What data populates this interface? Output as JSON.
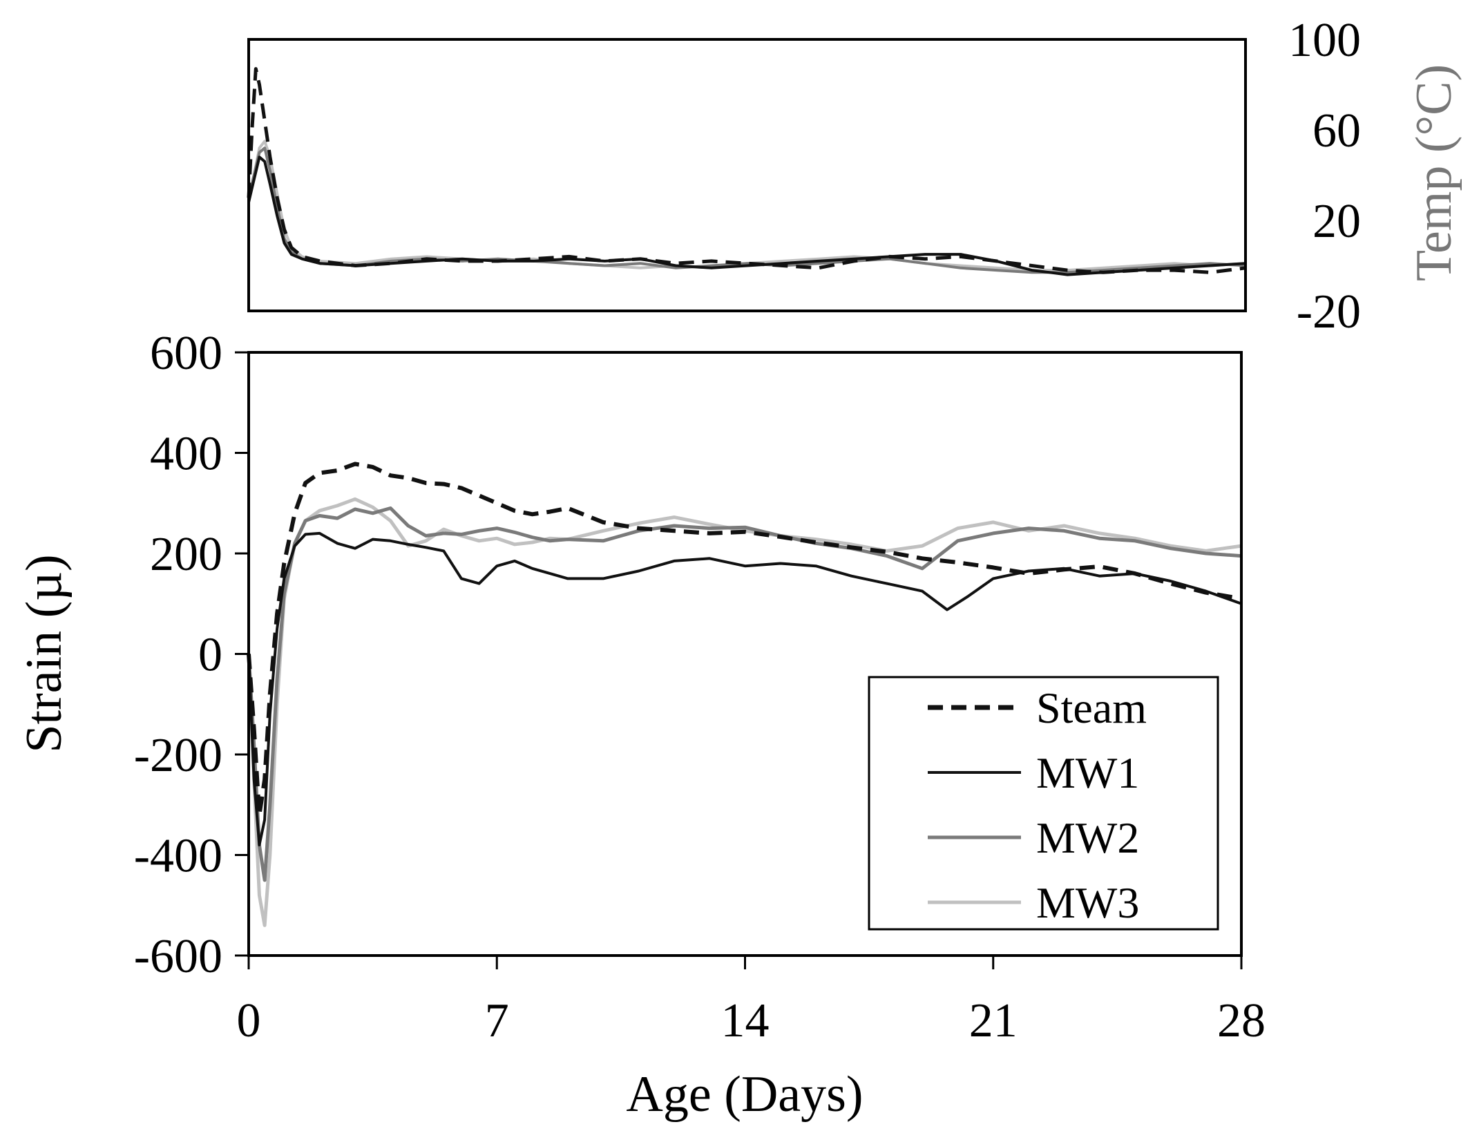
{
  "chart_data": [
    {
      "id": "temp",
      "type": "line",
      "title": "",
      "xlabel": "",
      "ylabel": "Temp (°C)",
      "ylabel_side": "right",
      "xlim": [
        0,
        28
      ],
      "ylim": [
        -20,
        100
      ],
      "yticks": [
        -20,
        20,
        60,
        100
      ],
      "ytick_labels": [
        "-20",
        "20",
        "60",
        "100"
      ],
      "grid": false,
      "series": [
        {
          "name": "Steam",
          "style": "dashed",
          "color": "#111111",
          "x": [
            0,
            0.1,
            0.2,
            0.3,
            0.45,
            0.6,
            0.8,
            1.0,
            1.2,
            1.5,
            2,
            3,
            4,
            5,
            6,
            7,
            8,
            9,
            10,
            11,
            12,
            13,
            14,
            15,
            16,
            17,
            18,
            19,
            20,
            21,
            22,
            23,
            24,
            25,
            26,
            27,
            28
          ],
          "y": [
            30,
            62,
            87,
            80,
            64,
            48,
            30,
            16,
            8,
            4,
            2,
            0,
            1,
            3,
            2,
            2,
            3,
            4,
            2,
            3,
            1,
            2,
            1,
            0,
            -1,
            2,
            4,
            3,
            4,
            2,
            0,
            -2,
            -3,
            -2,
            -2,
            -3,
            -1
          ]
        },
        {
          "name": "MW1",
          "style": "solid",
          "color": "#111111",
          "x": [
            0,
            0.15,
            0.3,
            0.45,
            0.6,
            0.8,
            1.0,
            1.2,
            1.5,
            2,
            3,
            4,
            5,
            6,
            7,
            8,
            9,
            10,
            11,
            12,
            13,
            14,
            15,
            16,
            17,
            18,
            19,
            20,
            21,
            22,
            23,
            24,
            25,
            26,
            27,
            28
          ],
          "y": [
            28,
            38,
            48,
            46,
            36,
            22,
            10,
            5,
            3,
            1,
            0,
            1,
            2,
            3,
            2,
            2,
            3,
            2,
            3,
            0,
            -1,
            0,
            1,
            2,
            3,
            4,
            5,
            5,
            2,
            -2,
            -4,
            -3,
            -2,
            -1,
            0,
            1
          ]
        },
        {
          "name": "MW2",
          "style": "solid",
          "color": "#7a7a7a",
          "x": [
            0,
            0.15,
            0.3,
            0.45,
            0.6,
            0.8,
            1.0,
            1.2,
            1.5,
            2,
            3,
            4,
            5,
            6,
            7,
            8,
            9,
            10,
            11,
            12,
            13,
            14,
            15,
            16,
            17,
            18,
            19,
            20,
            21,
            22,
            23,
            24,
            25,
            26,
            27,
            28
          ],
          "y": [
            30,
            40,
            50,
            52,
            42,
            26,
            12,
            6,
            3,
            1,
            0,
            2,
            3,
            2,
            3,
            2,
            1,
            0,
            1,
            -1,
            0,
            1,
            0,
            1,
            2,
            3,
            1,
            -1,
            -2,
            -3,
            -3,
            -2,
            -1,
            0,
            1,
            0
          ]
        },
        {
          "name": "MW3",
          "style": "solid",
          "color": "#c0c0c0",
          "x": [
            0,
            0.15,
            0.3,
            0.45,
            0.6,
            0.8,
            1.0,
            1.2,
            1.5,
            2,
            3,
            4,
            5,
            6,
            7,
            8,
            9,
            10,
            11,
            12,
            13,
            14,
            15,
            16,
            17,
            18,
            19,
            20,
            21,
            22,
            23,
            24,
            25,
            26,
            27,
            28
          ],
          "y": [
            30,
            40,
            52,
            55,
            48,
            32,
            16,
            8,
            4,
            2,
            1,
            3,
            4,
            3,
            2,
            3,
            1,
            0,
            -1,
            0,
            -1,
            1,
            2,
            3,
            4,
            3,
            1,
            0,
            -1,
            -2,
            -2,
            -1,
            0,
            1,
            0,
            1
          ]
        }
      ]
    },
    {
      "id": "strain",
      "type": "line",
      "title": "",
      "xlabel": "Age (Days)",
      "ylabel": "Strain (µ)",
      "xlim": [
        0,
        28
      ],
      "ylim": [
        -600,
        600
      ],
      "xticks": [
        0,
        7,
        14,
        21,
        28
      ],
      "xtick_labels": [
        "0",
        "7",
        "14",
        "21",
        "28"
      ],
      "yticks": [
        -600,
        -400,
        -200,
        0,
        200,
        400,
        600
      ],
      "ytick_labels": [
        "-600",
        "-400",
        "-200",
        "0",
        "200",
        "400",
        "600"
      ],
      "grid": false,
      "legend_position": "bottom-right",
      "series": [
        {
          "name": "Steam",
          "style": "dashed",
          "color": "#111111",
          "x": [
            0,
            0.15,
            0.3,
            0.45,
            0.6,
            0.8,
            1.0,
            1.3,
            1.6,
            2,
            2.5,
            3,
            3.5,
            4,
            4.5,
            5,
            5.5,
            6,
            6.5,
            7,
            7.5,
            8,
            8.5,
            9,
            10,
            11,
            12,
            13,
            14,
            15,
            16,
            17,
            18,
            19,
            20,
            21,
            22,
            23,
            24,
            25,
            26,
            27,
            28
          ],
          "y": [
            0,
            -150,
            -320,
            -250,
            -80,
            80,
            180,
            280,
            340,
            360,
            365,
            378,
            372,
            355,
            350,
            340,
            338,
            330,
            315,
            300,
            285,
            278,
            283,
            290,
            262,
            250,
            245,
            240,
            243,
            233,
            222,
            212,
            203,
            190,
            182,
            172,
            160,
            168,
            174,
            160,
            140,
            122,
            110
          ]
        },
        {
          "name": "MW1",
          "style": "solid",
          "color": "#111111",
          "x": [
            0,
            0.15,
            0.3,
            0.45,
            0.6,
            0.8,
            1.0,
            1.3,
            1.6,
            2,
            2.5,
            3,
            3.5,
            4,
            4.5,
            5,
            5.5,
            6,
            6.5,
            7,
            7.5,
            8,
            8.5,
            9,
            10,
            11,
            12,
            13,
            14,
            15,
            16,
            17,
            18,
            19,
            19.7,
            20.3,
            21,
            22,
            23,
            24,
            25,
            26,
            27,
            28
          ],
          "y": [
            0,
            -250,
            -380,
            -330,
            -120,
            50,
            150,
            215,
            238,
            240,
            220,
            210,
            228,
            225,
            218,
            212,
            205,
            150,
            140,
            175,
            185,
            170,
            160,
            150,
            150,
            165,
            185,
            190,
            175,
            180,
            175,
            155,
            140,
            125,
            88,
            115,
            150,
            165,
            170,
            155,
            160,
            145,
            125,
            100
          ]
        },
        {
          "name": "MW2",
          "style": "solid",
          "color": "#7a7a7a",
          "x": [
            0,
            0.15,
            0.3,
            0.45,
            0.6,
            0.8,
            1.0,
            1.3,
            1.6,
            2,
            2.5,
            3,
            3.5,
            4,
            4.5,
            5,
            5.5,
            6,
            6.5,
            7,
            7.5,
            8,
            8.5,
            9,
            10,
            11,
            12,
            13,
            14,
            15,
            16,
            17,
            18,
            19,
            20,
            21,
            22,
            23,
            24,
            25,
            26,
            27,
            28
          ],
          "y": [
            0,
            -180,
            -380,
            -450,
            -300,
            -50,
            120,
            220,
            265,
            275,
            270,
            288,
            280,
            290,
            255,
            235,
            240,
            238,
            245,
            250,
            242,
            232,
            225,
            228,
            225,
            245,
            255,
            250,
            252,
            235,
            220,
            210,
            195,
            170,
            225,
            240,
            250,
            245,
            230,
            225,
            210,
            200,
            195
          ]
        },
        {
          "name": "MW3",
          "style": "solid",
          "color": "#c0c0c0",
          "x": [
            0,
            0.15,
            0.3,
            0.45,
            0.6,
            0.8,
            1.0,
            1.3,
            1.6,
            2,
            2.5,
            3,
            3.5,
            4,
            4.5,
            5,
            5.5,
            6,
            6.5,
            7,
            7.5,
            8,
            8.5,
            9,
            10,
            11,
            12,
            13,
            14,
            15,
            16,
            17,
            18,
            19,
            20,
            21,
            22,
            23,
            24,
            25,
            26,
            27,
            28
          ],
          "y": [
            0,
            -250,
            -480,
            -540,
            -400,
            -100,
            110,
            220,
            265,
            285,
            295,
            308,
            292,
            265,
            215,
            225,
            248,
            235,
            225,
            230,
            218,
            222,
            230,
            228,
            245,
            260,
            272,
            258,
            245,
            235,
            228,
            218,
            205,
            215,
            250,
            262,
            245,
            255,
            240,
            230,
            215,
            205,
            215
          ]
        }
      ]
    }
  ]
}
